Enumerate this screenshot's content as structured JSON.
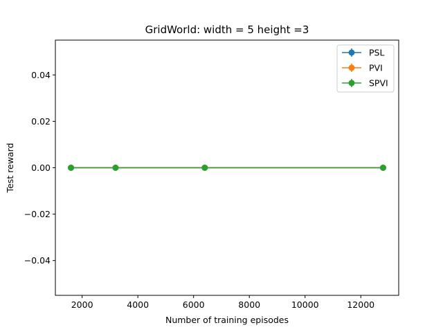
{
  "chart_data": {
    "type": "line",
    "title": "GridWorld: width = 5 height =3",
    "xlabel": "Number of training episodes",
    "ylabel": "Test reward",
    "xlim": [
      1040,
      13360
    ],
    "ylim": [
      -0.055,
      0.055
    ],
    "xticks": [
      2000,
      4000,
      6000,
      8000,
      10000,
      12000
    ],
    "yticks": [
      -0.04,
      -0.02,
      0.0,
      0.02,
      0.04
    ],
    "ytick_labels": [
      "−0.04",
      "−0.02",
      "0.00",
      "0.02",
      "0.04"
    ],
    "legend_position": "top-right",
    "x": [
      1600,
      3200,
      6400,
      12800
    ],
    "series": [
      {
        "name": "PSL",
        "color": "#1f77b4",
        "values": [
          0,
          0,
          0,
          0
        ],
        "error": [
          0,
          0,
          0,
          0
        ]
      },
      {
        "name": "PVI",
        "color": "#ff7f0e",
        "values": [
          0,
          0,
          0,
          0
        ],
        "error": [
          0,
          0,
          0,
          0
        ]
      },
      {
        "name": "SPVI",
        "color": "#2ca02c",
        "values": [
          0,
          0,
          0,
          0
        ],
        "error": [
          0,
          0,
          0,
          0
        ]
      }
    ]
  }
}
